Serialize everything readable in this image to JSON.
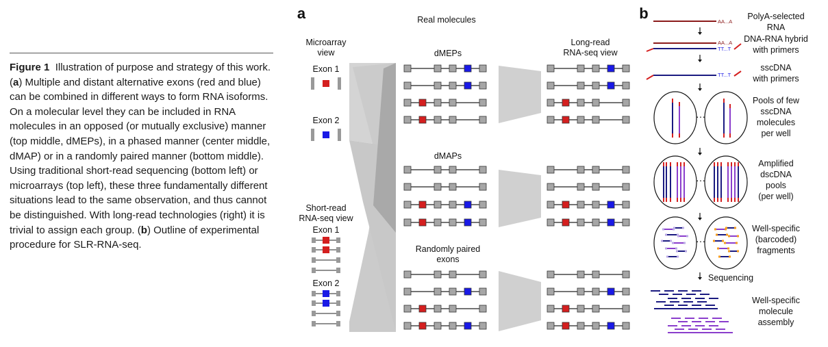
{
  "caption": {
    "label": "Figure 1",
    "t1": "Illustration of purpose and strategy of this work. (",
    "a": "a",
    "t2": ") Multiple and distant alternative exons (red and blue) can be combined in different ways to form RNA isoforms. On a molecular level they can be included in RNA molecules in an opposed (or mutually exclusive) manner (top middle, dMEPs), in a phased manner (center middle, dMAP) or in a randomly paired manner (bottom middle). Using traditional short-read sequencing (bottom left) or microarrays (top left), these three fundamentally different situations lead to the same observation, and thus cannot be distinguished. With long-read technologies (right) it is trivial to assign each group. (",
    "b": "b",
    "t3": ") Outline of experimental procedure for SLR-RNA-seq."
  },
  "panel_a": {
    "letter": "a",
    "real_molecules": "Real molecules",
    "microarray_view": [
      "Microarray",
      "view"
    ],
    "exon1": "Exon 1",
    "exon2": "Exon 2",
    "shortread_view": [
      "Short-read",
      "RNA-seq view"
    ],
    "longread_view": [
      "Long-read",
      "RNA-seq view"
    ],
    "groups": [
      {
        "title": [
          "dMEPs"
        ],
        "rows": [
          "blue",
          "blue",
          "red",
          "red"
        ]
      },
      {
        "title": [
          "dMAPs"
        ],
        "rows": [
          "none",
          "none",
          "both",
          "both"
        ]
      },
      {
        "title": [
          "Randomly paired",
          "exons"
        ],
        "rows": [
          "none",
          "blue",
          "red",
          "both"
        ]
      }
    ]
  },
  "panel_b": {
    "letter": "b",
    "polya_tail": "AA...A",
    "polyt_primer": "TT...T",
    "steps": [
      [
        "PolyA-selected",
        "RNA"
      ],
      [
        "DNA-RNA hybrid",
        "with primers"
      ],
      [
        "sscDNA",
        "with primers"
      ],
      [
        "Pools of few",
        "sscDNA",
        "molecules",
        "per well"
      ],
      [
        "Amplified",
        "dscDNA",
        "pools",
        "(per well)"
      ],
      [
        "Well-specific",
        "(barcoded)",
        "fragments"
      ],
      [
        "Well-specific",
        "molecule",
        "assembly"
      ]
    ],
    "sequencing": "Sequencing",
    "ellipsis": "···"
  },
  "colors": {
    "red": "#d41f1f",
    "blue": "#1919e6",
    "gray": "#a6a6a6",
    "navy": "#1a1a80",
    "purple": "#8a3dcc",
    "darkred": "#8b1a1a",
    "orange": "#f39a1e",
    "lilac": "#b9a8e6"
  }
}
